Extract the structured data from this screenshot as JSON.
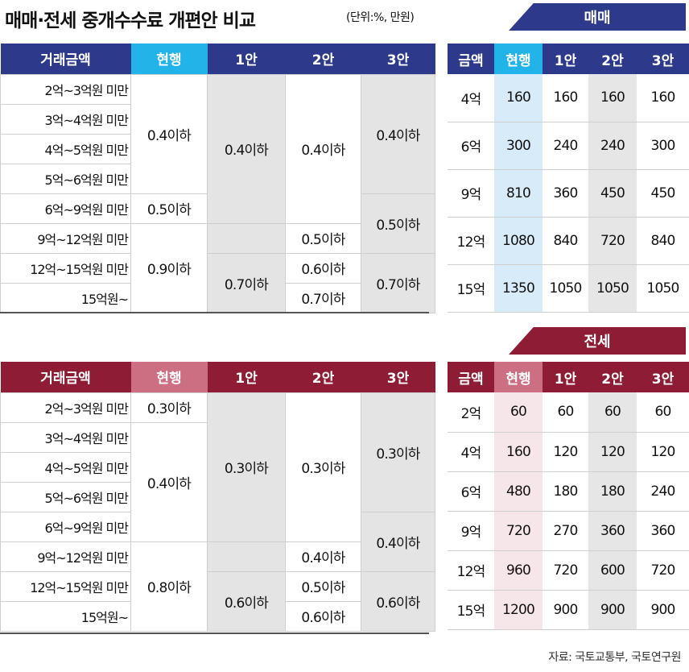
{
  "title": "매매·전세 중개수수료 개편안 비교",
  "unit": "(단위:%, 만원)",
  "source": "자료: 국토교통부, 국토연구원",
  "colors": {
    "sale_header": "#2d3a8c",
    "sale_current": "#22b3e8",
    "lease_header": "#8e1c35",
    "lease_current": "#cd6f83"
  },
  "sale": {
    "tab": "매매",
    "rate_headers": [
      "거래금액",
      "현행",
      "1안",
      "2안",
      "3안"
    ],
    "amounts": [
      "2억~3억원 미만",
      "3억~4억원 미만",
      "4억~5억원 미만",
      "5억~6억원 미만",
      "6억~9억원 미만",
      "9억~12억원 미만",
      "12억~15억원 미만",
      "15억원~"
    ],
    "current": [
      "0.4이하",
      "0.5이하",
      "0.9이하"
    ],
    "plan1": [
      "0.4이하",
      "0.7이하"
    ],
    "plan2": [
      "0.4이하",
      "0.5이하",
      "0.6이하",
      "0.7이하"
    ],
    "plan3": [
      "0.4이하",
      "0.5이하",
      "0.7이하"
    ],
    "fee_headers": [
      "금액",
      "현행",
      "1안",
      "2안",
      "3안"
    ],
    "fees": [
      [
        "4억",
        "160",
        "160",
        "160",
        "160"
      ],
      [
        "6억",
        "300",
        "240",
        "240",
        "300"
      ],
      [
        "9억",
        "810",
        "360",
        "450",
        "450"
      ],
      [
        "12억",
        "1080",
        "840",
        "720",
        "840"
      ],
      [
        "15억",
        "1350",
        "1050",
        "1050",
        "1050"
      ]
    ]
  },
  "lease": {
    "tab": "전세",
    "rate_headers": [
      "거래금액",
      "현행",
      "1안",
      "2안",
      "3안"
    ],
    "amounts": [
      "2억~3억원 미만",
      "3억~4억원 미만",
      "4억~5억원 미만",
      "5억~6억원 미만",
      "6억~9억원 미만",
      "9억~12억원 미만",
      "12억~15억원 미만",
      "15억원~"
    ],
    "current": [
      "0.3이하",
      "0.4이하",
      "0.8이하"
    ],
    "plan1": [
      "0.3이하",
      "0.6이하"
    ],
    "plan2": [
      "0.3이하",
      "0.4이하",
      "0.5이하",
      "0.6이하"
    ],
    "plan3": [
      "0.3이하",
      "0.4이하",
      "0.6이하"
    ],
    "fee_headers": [
      "금액",
      "현행",
      "1안",
      "2안",
      "3안"
    ],
    "fees": [
      [
        "2억",
        "60",
        "60",
        "60",
        "60"
      ],
      [
        "4억",
        "160",
        "120",
        "120",
        "120"
      ],
      [
        "6억",
        "480",
        "180",
        "180",
        "240"
      ],
      [
        "9억",
        "720",
        "270",
        "360",
        "360"
      ],
      [
        "12억",
        "960",
        "720",
        "600",
        "720"
      ],
      [
        "15억",
        "1200",
        "900",
        "900",
        "900"
      ]
    ]
  }
}
